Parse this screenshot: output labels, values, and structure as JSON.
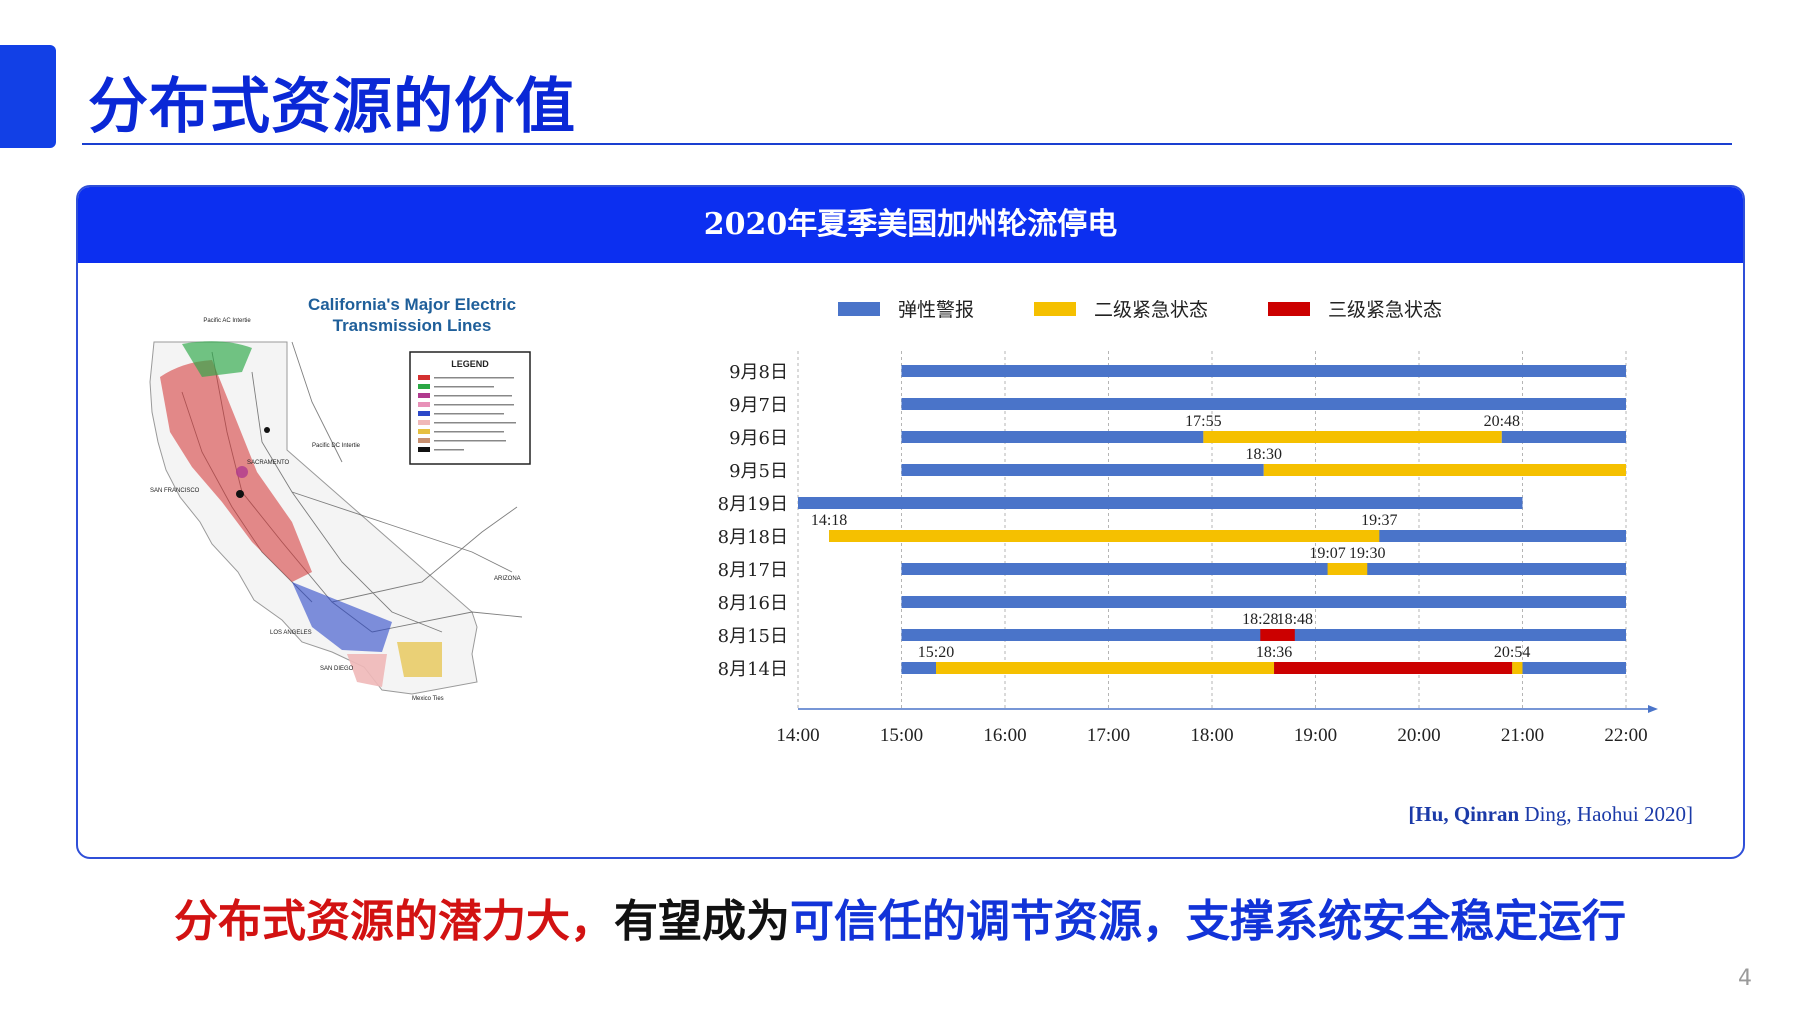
{
  "slide": {
    "title": "分布式资源的价值",
    "page_number": "4",
    "colors": {
      "accent": "#1240e6",
      "title": "#0a28d6",
      "panel_header": "#0c2ff0"
    }
  },
  "panel": {
    "header": "2020年夏季美国加州轮流停电",
    "citation_bold": "[Hu, Qinran",
    "citation_rest": " Ding, Haohui 2020]"
  },
  "map": {
    "title_line1": "California's Major Electric",
    "title_line2": "Transmission Lines",
    "legend_title": "LEGEND",
    "labels": {
      "pacific_ac": "Pacific AC Intertie",
      "pacific_dc": "Pacific DC Intertie",
      "sacramento": "SACRAMENTO",
      "san_francisco": "SAN FRANCISCO",
      "los_angeles": "LOS ANGELES",
      "san_diego": "SAN DIEGO",
      "arizona": "ARIZONA",
      "mexico": "Mexico Ties"
    }
  },
  "chart_data": {
    "type": "gantt",
    "x_ticks": [
      "14:00",
      "15:00",
      "16:00",
      "17:00",
      "18:00",
      "19:00",
      "20:00",
      "21:00",
      "22:00"
    ],
    "xlim": [
      "14:00",
      "22:00"
    ],
    "legend": [
      {
        "name": "弹性警报",
        "color": "#4a74c9"
      },
      {
        "name": "二级紧急状态",
        "color": "#f5c000"
      },
      {
        "name": "三级紧急状态",
        "color": "#cc0000"
      }
    ],
    "rows": [
      {
        "date": "9月8日",
        "segments": [
          {
            "level": 0,
            "start": "15:00",
            "end": "22:00"
          }
        ],
        "labels": []
      },
      {
        "date": "9月7日",
        "segments": [
          {
            "level": 0,
            "start": "15:00",
            "end": "22:00"
          }
        ],
        "labels": []
      },
      {
        "date": "9月6日",
        "segments": [
          {
            "level": 0,
            "start": "15:00",
            "end": "17:55"
          },
          {
            "level": 1,
            "start": "17:55",
            "end": "20:48"
          },
          {
            "level": 0,
            "start": "20:48",
            "end": "22:00"
          }
        ],
        "labels": [
          "17:55",
          "20:48"
        ]
      },
      {
        "date": "9月5日",
        "segments": [
          {
            "level": 0,
            "start": "15:00",
            "end": "18:30"
          },
          {
            "level": 1,
            "start": "18:30",
            "end": "22:00"
          }
        ],
        "labels": [
          "18:30"
        ]
      },
      {
        "date": "8月19日",
        "segments": [
          {
            "level": 0,
            "start": "14:00",
            "end": "21:00"
          }
        ],
        "labels": []
      },
      {
        "date": "8月18日",
        "segments": [
          {
            "level": 0,
            "start": "14:18",
            "end": "22:00"
          },
          {
            "level": 1,
            "start": "14:18",
            "end": "19:37"
          }
        ],
        "labels": [
          "14:18",
          "19:37"
        ]
      },
      {
        "date": "8月17日",
        "segments": [
          {
            "level": 0,
            "start": "15:00",
            "end": "22:00"
          },
          {
            "level": 1,
            "start": "19:07",
            "end": "19:30"
          }
        ],
        "labels": [
          "19:07",
          "19:30"
        ]
      },
      {
        "date": "8月16日",
        "segments": [
          {
            "level": 0,
            "start": "15:00",
            "end": "22:00"
          }
        ],
        "labels": []
      },
      {
        "date": "8月15日",
        "segments": [
          {
            "level": 0,
            "start": "15:00",
            "end": "22:00"
          },
          {
            "level": 2,
            "start": "18:28",
            "end": "18:48"
          }
        ],
        "labels": [
          "18:28",
          "18:48"
        ]
      },
      {
        "date": "8月14日",
        "segments": [
          {
            "level": 0,
            "start": "15:00",
            "end": "22:00"
          },
          {
            "level": 1,
            "start": "15:20",
            "end": "18:36"
          },
          {
            "level": 2,
            "start": "18:36",
            "end": "20:54"
          },
          {
            "level": 1,
            "start": "20:54",
            "end": "21:00"
          }
        ],
        "labels": [
          "15:20",
          "18:36",
          "20:54"
        ]
      }
    ]
  },
  "bottom_statement": {
    "part_red": "分布式资源的潜力大，",
    "part_black": "有望成为",
    "part_blue": "可信任的调节资源，支撑系统安全稳定运行"
  }
}
